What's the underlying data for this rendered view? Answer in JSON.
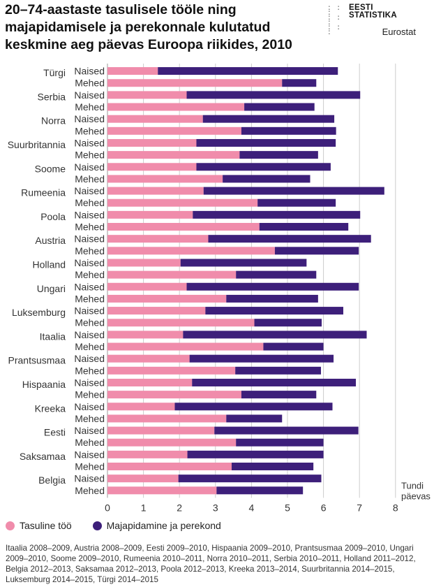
{
  "title": "20–74-aastaste tasulisele tööle ning majapidamisele ja perekonnale kulutatud keskmine aeg päevas Euroopa riikides, 2010",
  "logo": {
    "line1": "EESTI",
    "line2": "STATISTIKA"
  },
  "source": "Eurostat",
  "footnote": "Itaalia 2008–2009, Austria 2008–2009, Eesti 2009–2010, Hispaania 2009–2010, Prantsusmaa 2009–2010, Ungari 2009–2010, Soome 2009–2010, Rumeenia 2010–2011, Norra 2010–2011, Serbia 2010–2011, Holland 2011–2012, Belgia 2012–2013, Saksamaa 2012–2013, Poola 2012–2013, Kreeka 2013–2014, Suurbritannia 2014–2015, Luksemburg 2014–2015, Türgi 2014–2015",
  "colors": {
    "paid_work": "#f08cab",
    "household": "#3d1f7a",
    "grid": "#cccccc",
    "axis": "#999999"
  },
  "chart_data": {
    "type": "bar",
    "orientation": "horizontal",
    "stacked": true,
    "xlabel": "Tundi päevas",
    "xlabel_lines": [
      "Tundi",
      "päevas"
    ],
    "xlim": [
      0,
      8
    ],
    "xticks": [
      "0",
      "1",
      "2",
      "3",
      "4",
      "5",
      "6",
      "7",
      "8"
    ],
    "grid": true,
    "legend_position": "bottom-left",
    "series": [
      {
        "name": "Tasuline töö",
        "key": "paid_work"
      },
      {
        "name": "Majapidamine ja perekond",
        "key": "household"
      }
    ],
    "gender_labels": {
      "female": "Naised",
      "male": "Mehed"
    },
    "countries": [
      {
        "name": "Türgi",
        "female": [
          1.4,
          5.0
        ],
        "male": [
          4.85,
          0.95
        ]
      },
      {
        "name": "Serbia",
        "female": [
          2.2,
          4.82
        ],
        "male": [
          3.8,
          1.95
        ]
      },
      {
        "name": "Norra",
        "female": [
          2.65,
          3.65
        ],
        "male": [
          3.72,
          2.63
        ]
      },
      {
        "name": "Suurbritannia",
        "female": [
          2.47,
          3.87
        ],
        "male": [
          3.67,
          2.18
        ]
      },
      {
        "name": "Soome",
        "female": [
          2.47,
          3.73
        ],
        "male": [
          3.2,
          2.43
        ]
      },
      {
        "name": "Rumeenia",
        "female": [
          2.67,
          5.02
        ],
        "male": [
          4.17,
          2.17
        ]
      },
      {
        "name": "Poola",
        "female": [
          2.37,
          4.65
        ],
        "male": [
          4.22,
          2.47
        ]
      },
      {
        "name": "Austria",
        "female": [
          2.8,
          4.52
        ],
        "male": [
          4.65,
          2.33
        ]
      },
      {
        "name": "Holland",
        "female": [
          2.03,
          3.5
        ],
        "male": [
          3.57,
          2.23
        ]
      },
      {
        "name": "Ungari",
        "female": [
          2.2,
          4.78
        ],
        "male": [
          3.3,
          2.55
        ]
      },
      {
        "name": "Luksemburg",
        "female": [
          2.72,
          3.83
        ],
        "male": [
          4.08,
          1.87
        ]
      },
      {
        "name": "Itaalia",
        "female": [
          2.1,
          5.1
        ],
        "male": [
          4.33,
          1.67
        ]
      },
      {
        "name": "Prantsusmaa",
        "female": [
          2.28,
          4.0
        ],
        "male": [
          3.55,
          2.38
        ]
      },
      {
        "name": "Hispaania",
        "female": [
          2.35,
          4.55
        ],
        "male": [
          3.72,
          2.08
        ]
      },
      {
        "name": "Kreeka",
        "female": [
          1.87,
          4.38
        ],
        "male": [
          3.3,
          1.55
        ]
      },
      {
        "name": "Eesti",
        "female": [
          2.97,
          4.0
        ],
        "male": [
          3.57,
          2.43
        ]
      },
      {
        "name": "Saksamaa",
        "female": [
          2.22,
          3.78
        ],
        "male": [
          3.45,
          2.27
        ]
      },
      {
        "name": "Belgia",
        "female": [
          1.97,
          3.97
        ],
        "male": [
          3.03,
          2.4
        ]
      }
    ]
  }
}
